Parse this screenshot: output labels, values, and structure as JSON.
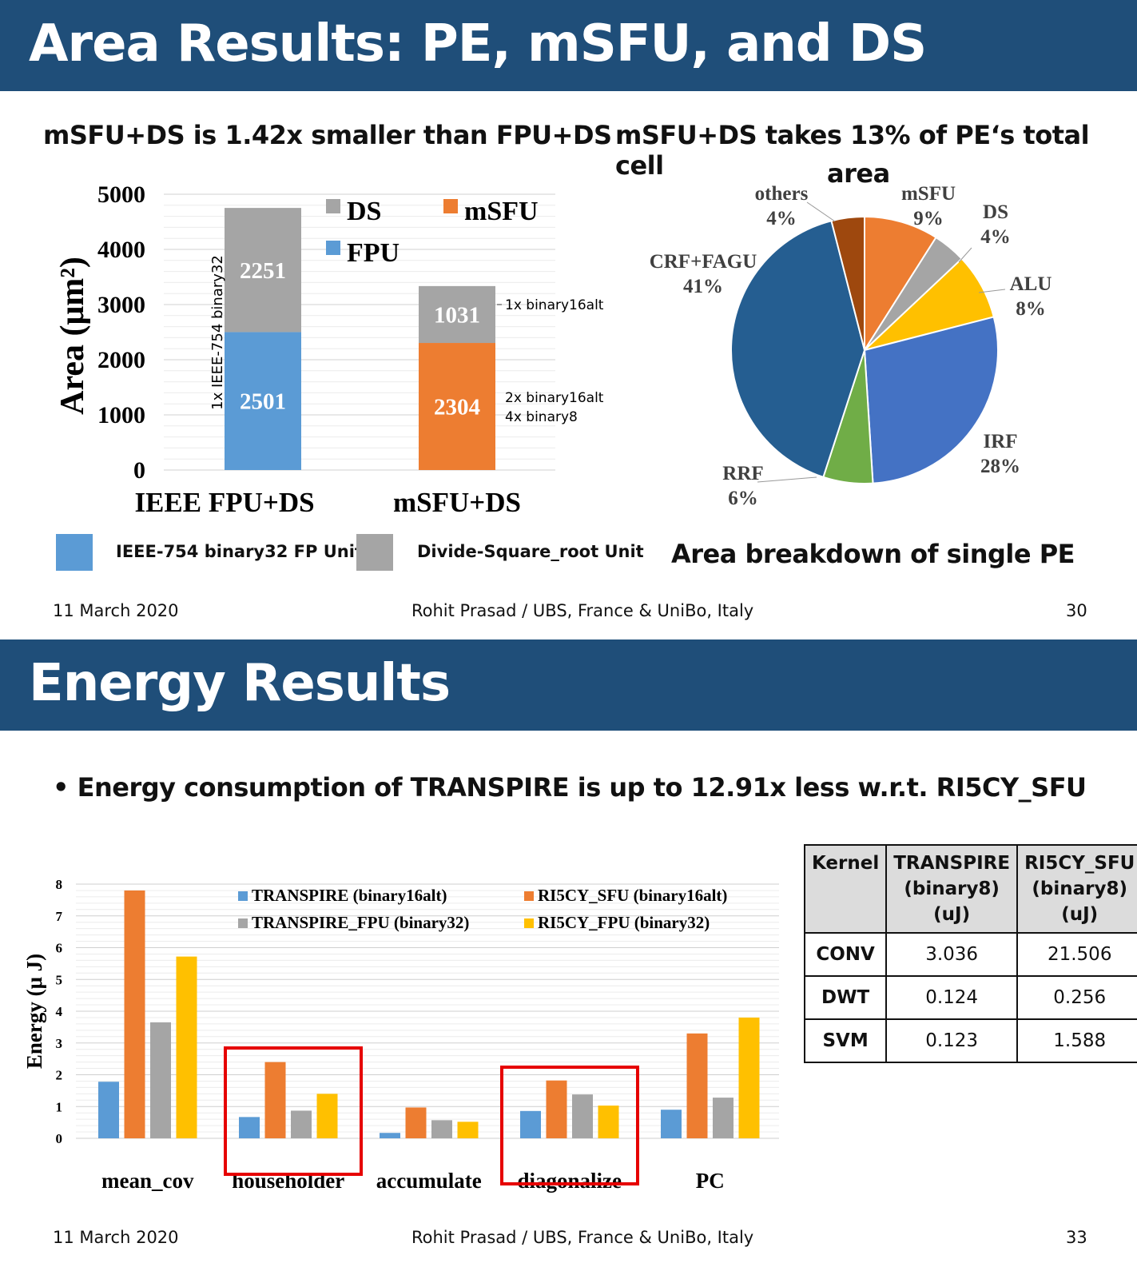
{
  "slide1": {
    "title": "Area Results: PE, mSFU, and DS",
    "left_heading": "mSFU+DS is 1.42x smaller than FPU+DS",
    "right_heading_line1": "mSFU+DS takes 13% of PE‘s total cell",
    "right_heading_line2": "area",
    "pie_caption": "Area breakdown of single PE",
    "bottom_legend": [
      {
        "label": "IEEE-754 binary32 FP Unit",
        "color": "#5b9bd5"
      },
      {
        "label": "Divide-Square_root Unit",
        "color": "#a5a5a5"
      }
    ],
    "footer": {
      "date": "11 March 2020",
      "author": "Rohit Prasad / UBS, France & UniBo, Italy",
      "page": "30"
    }
  },
  "slide2": {
    "title": "Energy Results",
    "bullet": "Energy consumption of TRANSPIRE is up to 12.91x less w.r.t. RI5CY_SFU",
    "table": {
      "headers": [
        [
          "Kernel"
        ],
        [
          "TRANSPIRE",
          "(binary8)",
          "(uJ)"
        ],
        [
          "RI5CY_SFU",
          "(binary8)",
          "(uJ)"
        ]
      ],
      "rows": [
        [
          "CONV",
          "3.036",
          "21.506"
        ],
        [
          "DWT",
          "0.124",
          "0.256"
        ],
        [
          "SVM",
          "0.123",
          "1.588"
        ]
      ]
    },
    "footer": {
      "date": "11 March 2020",
      "author": "Rohit Prasad / UBS, France & UniBo, Italy",
      "page": "33"
    }
  },
  "chart_data": [
    {
      "type": "bar",
      "stacked": true,
      "categories": [
        "IEEE FPU+DS",
        "mSFU+DS"
      ],
      "ylabel": "Area (μm²)",
      "ylim": [
        0,
        5000
      ],
      "yticks": [
        "0",
        "1000",
        "2000",
        "3000",
        "4000",
        "5000"
      ],
      "grid": true,
      "legend_position": "top",
      "legend": [
        {
          "name": "DS",
          "color": "#a5a5a5"
        },
        {
          "name": "mSFU",
          "color": "#ed7d31"
        },
        {
          "name": "FPU",
          "color": "#5b9bd5"
        }
      ],
      "stacks": [
        [
          {
            "value": 2501,
            "label": "2501",
            "color": "#5b9bd5"
          },
          {
            "value": 2251,
            "label": "2251",
            "color": "#a5a5a5"
          }
        ],
        [
          {
            "value": 2304,
            "label": "2304",
            "color": "#ed7d31"
          },
          {
            "value": 1031,
            "label": "1031",
            "color": "#a5a5a5"
          }
        ]
      ],
      "annotations": {
        "bar0_vertical": "1x IEEE-754 binary32",
        "bar1_top": "1x  binary16alt",
        "bar1_bottom_line1": "2x  binary16alt",
        "bar1_bottom_line2": "4x  binary8"
      }
    },
    {
      "type": "pie",
      "slices": [
        {
          "name": "mSFU",
          "value": 9,
          "label": "9%",
          "color": "#ed7d31"
        },
        {
          "name": "DS",
          "value": 4,
          "label": "4%",
          "color": "#a5a5a5"
        },
        {
          "name": "ALU",
          "value": 8,
          "label": "8%",
          "color": "#ffc000"
        },
        {
          "name": "IRF",
          "value": 28,
          "label": "28%",
          "color": "#4472c4"
        },
        {
          "name": "RRF",
          "value": 6,
          "label": "6%",
          "color": "#70ad47"
        },
        {
          "name": "CRF+FAGU",
          "value": 41,
          "label": "41%",
          "color": "#255e91"
        },
        {
          "name": "others",
          "value": 4,
          "label": "4%",
          "color": "#9e480e"
        }
      ]
    },
    {
      "type": "bar",
      "categories": [
        "mean_cov",
        "householder",
        "accumulate",
        "diagonalize",
        "PC"
      ],
      "ylabel": "Energy (μ J)",
      "ylim": [
        0,
        8
      ],
      "yticks": [
        "0",
        "1",
        "2",
        "3",
        "4",
        "5",
        "6",
        "7",
        "8"
      ],
      "grid": true,
      "legend_position": "top",
      "highlighted_categories": [
        "householder",
        "diagonalize"
      ],
      "series": [
        {
          "name": "TRANSPIRE (binary16alt)",
          "color": "#5b9bd5",
          "values": [
            1.78,
            0.67,
            0.17,
            0.86,
            0.9
          ]
        },
        {
          "name": "RI5CY_SFU (binary16alt)",
          "color": "#ed7d31",
          "values": [
            7.8,
            2.4,
            0.97,
            1.82,
            3.3
          ]
        },
        {
          "name": "TRANSPIRE_FPU (binary32)",
          "color": "#a5a5a5",
          "values": [
            3.65,
            0.87,
            0.57,
            1.38,
            1.28
          ]
        },
        {
          "name": "RI5CY_FPU (binary32)",
          "color": "#ffc000",
          "values": [
            5.72,
            1.4,
            0.52,
            1.03,
            3.8
          ]
        }
      ]
    }
  ]
}
